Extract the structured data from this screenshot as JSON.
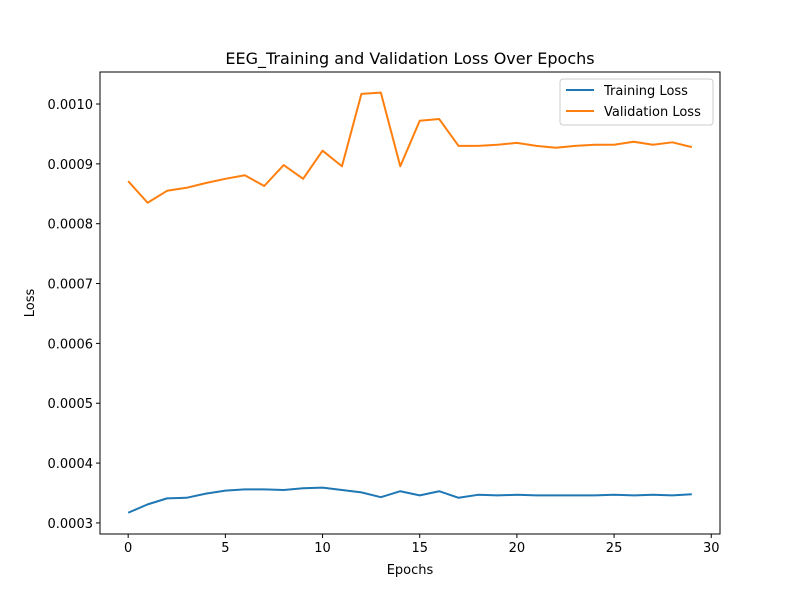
{
  "chart_data": {
    "type": "line",
    "title": "EEG_Training and Validation Loss Over Epochs",
    "xlabel": "Epochs",
    "ylabel": "Loss",
    "xlim": [
      -1.45,
      30.45
    ],
    "ylim": [
      0.0002815,
      0.0010535
    ],
    "xticks": [
      0,
      5,
      10,
      15,
      20,
      25,
      30
    ],
    "xtick_labels": [
      "0",
      "5",
      "10",
      "15",
      "20",
      "25",
      "30"
    ],
    "yticks": [
      0.0003,
      0.0004,
      0.0005,
      0.0006,
      0.0007,
      0.0008,
      0.0009,
      0.001
    ],
    "ytick_labels": [
      "0.0003",
      "0.0004",
      "0.0005",
      "0.0006",
      "0.0007",
      "0.0008",
      "0.0009",
      "0.0010"
    ],
    "grid": false,
    "legend_position": "top-right",
    "x": [
      0,
      1,
      2,
      3,
      4,
      5,
      6,
      7,
      8,
      9,
      10,
      11,
      12,
      13,
      14,
      15,
      16,
      17,
      18,
      19,
      20,
      21,
      22,
      23,
      24,
      25,
      26,
      27,
      28,
      29
    ],
    "series": [
      {
        "name": "Training Loss",
        "color": "#1f77b4",
        "values": [
          0.000317,
          0.000331,
          0.000341,
          0.000342,
          0.000349,
          0.000354,
          0.000356,
          0.000356,
          0.000355,
          0.000358,
          0.000359,
          0.000355,
          0.000351,
          0.000343,
          0.000353,
          0.000346,
          0.000353,
          0.000342,
          0.000347,
          0.000346,
          0.000347,
          0.000346,
          0.000346,
          0.000346,
          0.000346,
          0.000347,
          0.000346,
          0.000347,
          0.000346,
          0.000348
        ]
      },
      {
        "name": "Validation Loss",
        "color": "#ff7f0e",
        "values": [
          0.000871,
          0.000835,
          0.000855,
          0.00086,
          0.000868,
          0.000875,
          0.000881,
          0.000863,
          0.000898,
          0.000875,
          0.000922,
          0.000896,
          0.001017,
          0.001019,
          0.000896,
          0.000972,
          0.000975,
          0.00093,
          0.00093,
          0.000932,
          0.000935,
          0.00093,
          0.000927,
          0.00093,
          0.000932,
          0.000932,
          0.000937,
          0.000932,
          0.000936,
          0.000928
        ]
      }
    ]
  }
}
